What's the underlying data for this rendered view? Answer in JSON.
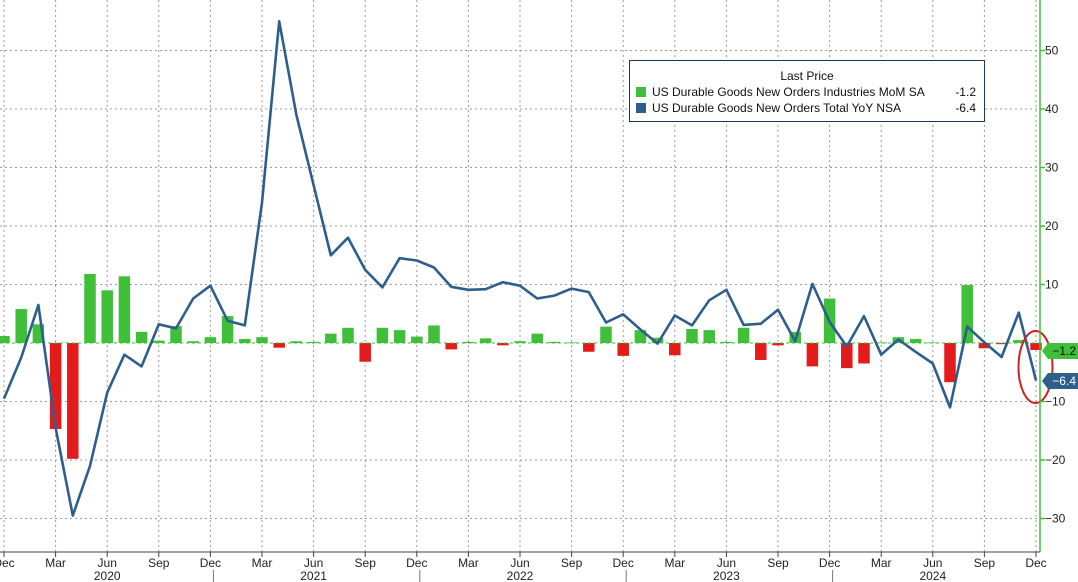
{
  "chart_data": {
    "type": "bar+line",
    "title": "",
    "xlabel": "",
    "ylabel": "",
    "ylim": [
      -33,
      60
    ],
    "yticks": [
      -30,
      -20,
      -10,
      10,
      20,
      30,
      40,
      50
    ],
    "grid": true,
    "legend": {
      "title": "Last Price",
      "placement": "top-right",
      "entries": [
        {
          "name": "US Durable Goods New Orders Industries MoM SA",
          "value": "-1.2",
          "color": "#3fbf3a"
        },
        {
          "name": "US Durable Goods New Orders Total YoY NSA",
          "value": "-6.4",
          "color": "#2e5f8c"
        }
      ]
    },
    "x_month_labels": [
      {
        "label": "Dec",
        "index": 0
      },
      {
        "label": "Mar",
        "index": 3
      },
      {
        "label": "Jun",
        "index": 6
      },
      {
        "label": "Sep",
        "index": 9
      },
      {
        "label": "Dec",
        "index": 12
      },
      {
        "label": "Mar",
        "index": 15
      },
      {
        "label": "Jun",
        "index": 18
      },
      {
        "label": "Sep",
        "index": 21
      },
      {
        "label": "Dec",
        "index": 24
      },
      {
        "label": "Mar",
        "index": 27
      },
      {
        "label": "Jun",
        "index": 30
      },
      {
        "label": "Sep",
        "index": 33
      },
      {
        "label": "Dec",
        "index": 36
      },
      {
        "label": "Mar",
        "index": 39
      },
      {
        "label": "Jun",
        "index": 42
      },
      {
        "label": "Sep",
        "index": 45
      },
      {
        "label": "Dec",
        "index": 48
      },
      {
        "label": "Mar",
        "index": 51
      },
      {
        "label": "Jun",
        "index": 54
      },
      {
        "label": "Sep",
        "index": 57
      },
      {
        "label": "Dec",
        "index": 60
      }
    ],
    "x_year_labels": [
      {
        "label": "2020",
        "index": 6
      },
      {
        "label": "2021",
        "index": 18
      },
      {
        "label": "2022",
        "index": 30
      },
      {
        "label": "2023",
        "index": 42
      },
      {
        "label": "2024",
        "index": 54
      }
    ],
    "x_start": "2019-12",
    "series": [
      {
        "name": "US Durable Goods New Orders Industries MoM SA",
        "type": "bar",
        "positive_color": "#3fbf3a",
        "negative_color": "#e31b1b",
        "values": [
          1.2,
          5.8,
          3.2,
          -14.7,
          -19.8,
          11.8,
          9.0,
          11.4,
          1.9,
          0.4,
          2.9,
          0.3,
          1.0,
          4.6,
          0.7,
          1.0,
          -0.8,
          0.3,
          0.2,
          1.6,
          2.6,
          -3.2,
          2.6,
          2.2,
          1.1,
          3.0,
          -1.1,
          0.2,
          0.8,
          -0.4,
          0.3,
          1.6,
          0.2,
          0.1,
          -1.5,
          2.8,
          -2.2,
          2.2,
          0.9,
          -2.1,
          2.4,
          2.2,
          0.2,
          2.6,
          -2.9,
          -0.4,
          1.9,
          -4.0,
          7.6,
          -4.3,
          -3.5,
          0.1,
          1.0,
          0.7,
          0.1,
          -6.7,
          9.9,
          -0.9,
          -0.2,
          0.5,
          -1.2
        ]
      },
      {
        "name": "US Durable Goods New Orders Total YoY NSA",
        "type": "line",
        "color": "#2e5f8c",
        "values": [
          -9.5,
          -2.5,
          6.5,
          -14.5,
          -29.5,
          -21,
          -8.5,
          -2,
          -4,
          3.2,
          2.5,
          7.6,
          9.8,
          3.8,
          3,
          24,
          55,
          39,
          27,
          15,
          18,
          12.5,
          9.5,
          14.5,
          14.1,
          12.9,
          9.6,
          9.1,
          9.2,
          10.4,
          9.8,
          7.6,
          8.1,
          9.3,
          8.7,
          3.5,
          4.9,
          2.3,
          -0.1,
          4.7,
          3,
          7.3,
          9.1,
          3.1,
          3.3,
          5.7,
          0.3,
          10.1,
          3.6,
          -0.6,
          4.6,
          -2,
          0.6,
          -1.5,
          -3.5,
          -11,
          2.8,
          0.1,
          -2.4,
          5.2,
          -6.4
        ]
      }
    ],
    "last_value_labels": [
      {
        "text": "-1.2",
        "color": "#3fbf3a"
      },
      {
        "text": "-6.4",
        "color": "#2e5f8c"
      }
    ],
    "annotations": [
      {
        "type": "ellipse",
        "color": "#cc2222",
        "around": "latest values"
      }
    ]
  }
}
